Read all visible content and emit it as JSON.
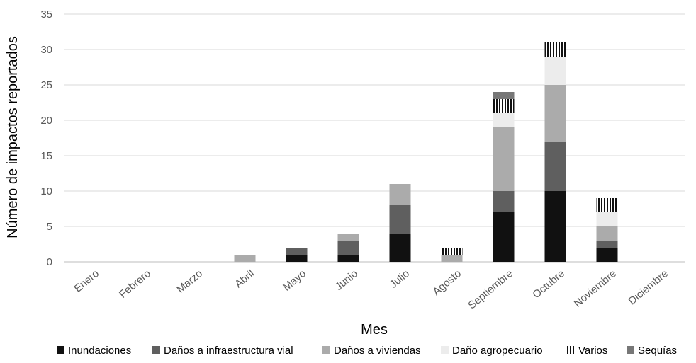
{
  "chart_data": {
    "type": "bar",
    "stacked": true,
    "title": "",
    "xlabel": "Mes",
    "ylabel": "Número de impactos reportados",
    "ylim": [
      0,
      35
    ],
    "yticks": [
      0,
      5,
      10,
      15,
      20,
      25,
      30,
      35
    ],
    "grid": true,
    "legend_position": "bottom",
    "categories": [
      "Enero",
      "Febrero",
      "Marzo",
      "Abril",
      "Mayo",
      "Junio",
      "Julio",
      "Agosto",
      "Septiembre",
      "Octubre",
      "Noviembre",
      "Diciembre"
    ],
    "series": [
      {
        "name": "Inundaciones",
        "color": "#111111",
        "pattern": "solid",
        "values": [
          0,
          0,
          0,
          0,
          1,
          1,
          4,
          0,
          7,
          10,
          2,
          0
        ]
      },
      {
        "name": "Daños a infraestructura vial",
        "color": "#5f5f5f",
        "pattern": "solid",
        "values": [
          0,
          0,
          0,
          0,
          1,
          2,
          4,
          0,
          3,
          7,
          1,
          0
        ]
      },
      {
        "name": "Daños a viviendas",
        "color": "#ababab",
        "pattern": "solid",
        "values": [
          0,
          0,
          0,
          1,
          0,
          1,
          3,
          1,
          9,
          8,
          2,
          0
        ]
      },
      {
        "name": "Daño agropecuario",
        "color": "#ececec",
        "pattern": "solid",
        "values": [
          0,
          0,
          0,
          0,
          0,
          0,
          0,
          0,
          2,
          4,
          2,
          0
        ]
      },
      {
        "name": "Varios",
        "color": "#111111",
        "pattern": "vertical-stripes",
        "values": [
          0,
          0,
          0,
          0,
          0,
          0,
          0,
          1,
          2,
          2,
          2,
          0
        ]
      },
      {
        "name": "Sequías",
        "color": "#777777",
        "pattern": "solid",
        "values": [
          0,
          0,
          0,
          0,
          0,
          0,
          0,
          0,
          1,
          0,
          0,
          0
        ]
      }
    ]
  }
}
